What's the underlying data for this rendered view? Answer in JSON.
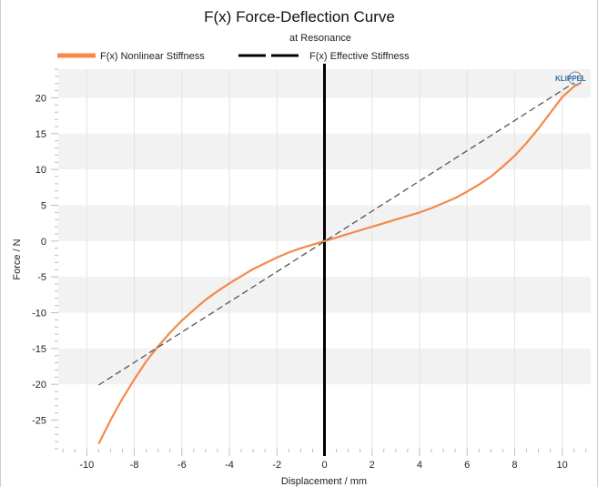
{
  "chart_data": {
    "type": "line",
    "title": "F(x) Force-Deflection Curve",
    "subtitle": "at Resonance",
    "xlabel": "Displacement / mm",
    "ylabel": "Force / N",
    "xlim": [
      -11.2,
      11.2
    ],
    "ylim": [
      -29,
      24
    ],
    "xticks": [
      -10,
      -8,
      -6,
      -4,
      -2,
      0,
      2,
      4,
      6,
      8,
      10
    ],
    "yticks": [
      20,
      15,
      10,
      5,
      0,
      -5,
      -10,
      -15,
      -20,
      -25
    ],
    "legend": "top",
    "grid": true,
    "logo": "KLIPPEL",
    "series": [
      {
        "name": "F(x) Nonlinear Stiffness",
        "color": "#f5894a",
        "style": "solid",
        "x": [
          -9.5,
          -9,
          -8.5,
          -8,
          -7.5,
          -7,
          -6.5,
          -6,
          -5.5,
          -5,
          -4.5,
          -4,
          -3.5,
          -3,
          -2.5,
          -2,
          -1.5,
          -1,
          -0.5,
          0,
          0.5,
          1,
          1.5,
          2,
          2.5,
          3,
          3.5,
          4,
          4.5,
          5,
          5.5,
          6,
          6.5,
          7,
          7.5,
          8,
          8.5,
          9,
          9.5,
          10,
          10.5,
          10.8
        ],
        "y": [
          -28.3,
          -25.0,
          -22.0,
          -19.3,
          -16.8,
          -14.7,
          -12.8,
          -11.1,
          -9.6,
          -8.2,
          -7.0,
          -5.9,
          -4.9,
          -3.9,
          -3.1,
          -2.3,
          -1.6,
          -1.0,
          -0.5,
          0.0,
          0.5,
          1.0,
          1.5,
          2.0,
          2.5,
          3.0,
          3.5,
          4.0,
          4.6,
          5.3,
          6.0,
          6.9,
          7.9,
          9.0,
          10.4,
          11.9,
          13.7,
          15.7,
          17.9,
          20.1,
          21.6,
          22.1
        ]
      },
      {
        "name": "F(x) Effective Stiffness",
        "color": "#555555",
        "style": "dashed",
        "x": [
          -9.5,
          10.5
        ],
        "y": [
          -20.1,
          22.1
        ]
      }
    ],
    "reference_lines": [
      {
        "axis": "x",
        "value": 0,
        "color": "#000000"
      }
    ]
  }
}
